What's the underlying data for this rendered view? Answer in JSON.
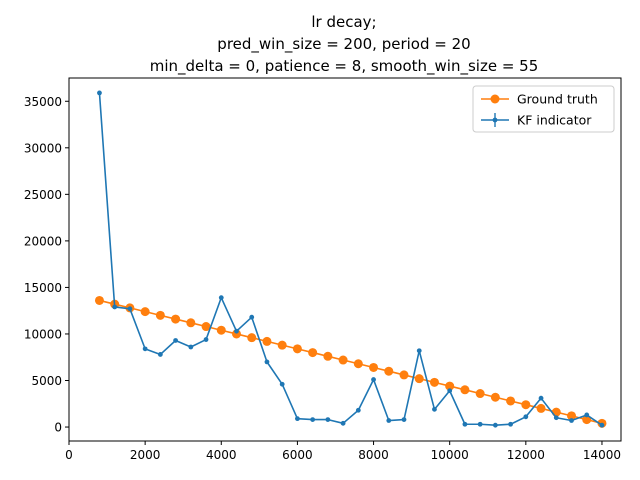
{
  "chart_data": {
    "type": "line",
    "title": [
      "lr decay;",
      "pred_win_size = 200, period = 20",
      "min_delta = 0, patience = 8, smooth_win_size = 55"
    ],
    "xlabel": "",
    "ylabel": "",
    "xlim": [
      0,
      14500
    ],
    "ylim": [
      -1500,
      37500
    ],
    "xticks": [
      0,
      2000,
      4000,
      6000,
      8000,
      10000,
      12000,
      14000
    ],
    "yticks": [
      0,
      5000,
      10000,
      15000,
      20000,
      25000,
      30000,
      35000
    ],
    "grid": false,
    "legend_position": "top-right",
    "series": [
      {
        "name": "Ground truth",
        "color": "#ff7f0e",
        "marker": "circle-large",
        "x": [
          800,
          1200,
          1600,
          2000,
          2400,
          2800,
          3200,
          3600,
          4000,
          4400,
          4800,
          5200,
          5600,
          6000,
          6400,
          6800,
          7200,
          7600,
          8000,
          8400,
          8800,
          9200,
          9600,
          10000,
          10400,
          10800,
          11200,
          11600,
          12000,
          12400,
          12800,
          13200,
          13600,
          14000
        ],
        "y": [
          13600,
          13200,
          12800,
          12400,
          12000,
          11600,
          11200,
          10800,
          10400,
          10000,
          9600,
          9200,
          8800,
          8400,
          8000,
          7600,
          7200,
          6800,
          6400,
          6000,
          5600,
          5200,
          4800,
          4400,
          4000,
          3600,
          3200,
          2800,
          2400,
          2000,
          1600,
          1200,
          800,
          400
        ]
      },
      {
        "name": "KF indicator",
        "color": "#1f77b4",
        "marker": "circle-small",
        "x": [
          800,
          1200,
          1600,
          2000,
          2400,
          2800,
          3200,
          3600,
          4000,
          4400,
          4800,
          5200,
          5600,
          6000,
          6400,
          6800,
          7200,
          7600,
          8000,
          8400,
          8800,
          9200,
          9600,
          10000,
          10400,
          10800,
          11200,
          11600,
          12000,
          12400,
          12800,
          13200,
          13600,
          14000
        ],
        "y": [
          35900,
          12900,
          12700,
          8400,
          7800,
          9300,
          8600,
          9400,
          13900,
          10300,
          11800,
          7000,
          4600,
          900,
          800,
          800,
          400,
          1800,
          5100,
          700,
          800,
          8200,
          1900,
          3900,
          300,
          300,
          200,
          300,
          1100,
          3100,
          1000,
          700,
          1300,
          200
        ]
      }
    ]
  }
}
